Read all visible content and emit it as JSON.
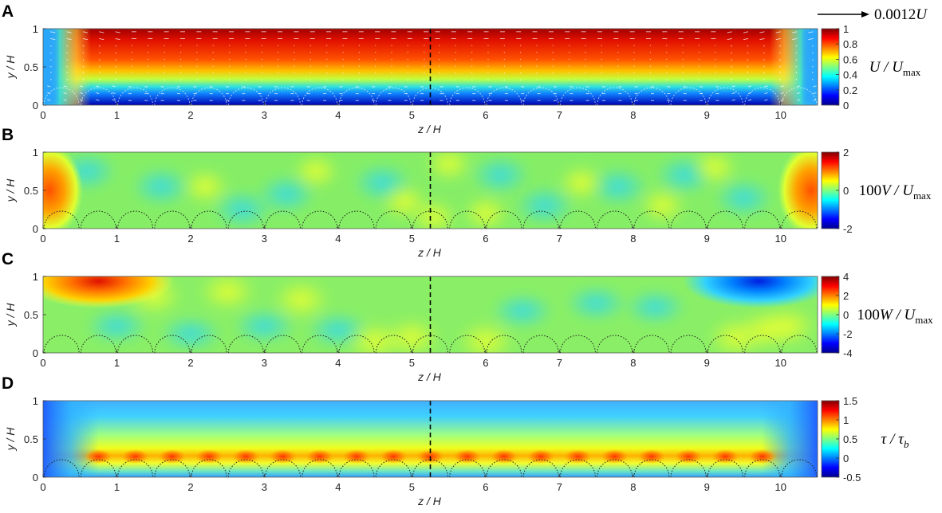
{
  "reference_vector": {
    "label_num": "0.0012",
    "label_var": "U"
  },
  "chart_data": [
    {
      "type": "heatmap",
      "panel": "A",
      "xlabel": "z / H",
      "ylabel": "y / H",
      "xlim": [
        0,
        10.5
      ],
      "ylim": [
        0,
        1
      ],
      "xticks": [
        0,
        1,
        2,
        3,
        4,
        5,
        6,
        7,
        8,
        9,
        10
      ],
      "yticks": [
        0,
        0.5,
        1
      ],
      "colorbar": {
        "label_var": "U / U",
        "label_sub": "max",
        "ticks": [
          "1",
          "0.8",
          "0.6",
          "0.4",
          "0.2",
          "0"
        ],
        "range": [
          0,
          1
        ]
      },
      "centerline_z": 5.25,
      "has_vectors": true
    },
    {
      "type": "heatmap",
      "panel": "B",
      "xlabel": "z / H",
      "ylabel": "y / H",
      "xlim": [
        0,
        10.5
      ],
      "ylim": [
        0,
        1
      ],
      "xticks": [
        0,
        1,
        2,
        3,
        4,
        5,
        6,
        7,
        8,
        9,
        10
      ],
      "yticks": [
        0,
        0.5,
        1
      ],
      "colorbar": {
        "label_pre": "100",
        "label_var": "V / U",
        "label_sub": "max",
        "ticks": [
          "2",
          "0",
          "-2"
        ],
        "range": [
          -2,
          2
        ]
      },
      "centerline_z": 5.25
    },
    {
      "type": "heatmap",
      "panel": "C",
      "xlabel": "z / H",
      "ylabel": "y / H",
      "xlim": [
        0,
        10.5
      ],
      "ylim": [
        0,
        1
      ],
      "xticks": [
        0,
        1,
        2,
        3,
        4,
        5,
        6,
        7,
        8,
        9,
        10
      ],
      "yticks": [
        0,
        0.5,
        1
      ],
      "colorbar": {
        "label_pre": "100",
        "label_var": "W / U",
        "label_sub": "max",
        "ticks": [
          "4",
          "2",
          "0",
          "-2",
          "-4"
        ],
        "range": [
          -4,
          4
        ]
      },
      "centerline_z": 5.25
    },
    {
      "type": "heatmap",
      "panel": "D",
      "xlabel": "z / H",
      "ylabel": "y / H",
      "xlim": [
        0,
        10.5
      ],
      "ylim": [
        0,
        1
      ],
      "xticks": [
        0,
        1,
        2,
        3,
        4,
        5,
        6,
        7,
        8,
        9,
        10
      ],
      "yticks": [
        0,
        0.5,
        1
      ],
      "colorbar": {
        "label_var": "τ / τ",
        "label_sub": "b",
        "ticks": [
          "1.5",
          "1",
          "0.5",
          "0",
          "-0.5"
        ],
        "range": [
          -0.5,
          1.5
        ]
      },
      "centerline_z": 5.25
    }
  ],
  "roughness_centers_z": [
    0.25,
    0.75,
    1.25,
    1.75,
    2.25,
    2.75,
    3.25,
    3.75,
    4.25,
    4.75,
    5.25,
    5.75,
    6.25,
    6.75,
    7.25,
    7.75,
    8.25,
    8.75,
    9.25,
    9.75,
    10.25
  ],
  "colors": {
    "low": "#0000a8",
    "mid": "#7cff7c",
    "high": "#a80000"
  }
}
